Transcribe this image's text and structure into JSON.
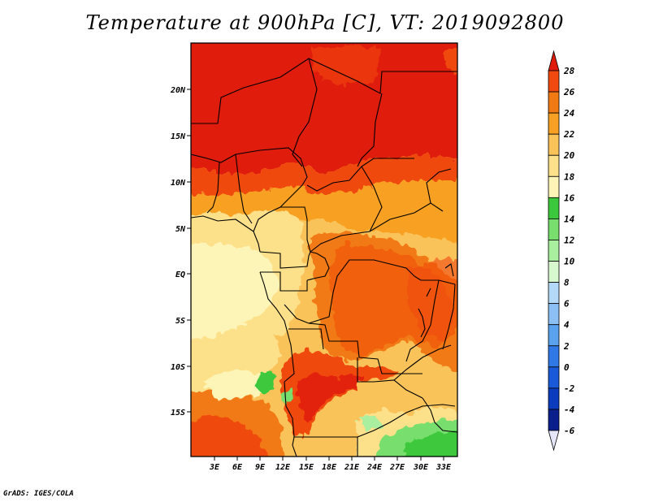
{
  "title": "Temperature at 900hPa [C], VT: 2019092800",
  "credit": "GrADS: IGES/COLA",
  "map": {
    "lat_labels": [
      "20N",
      "15N",
      "10N",
      "5N",
      "EQ",
      "5S",
      "10S",
      "15S"
    ],
    "lon_labels": [
      "3E",
      "6E",
      "9E",
      "12E",
      "15E",
      "18E",
      "21E",
      "24E",
      "27E",
      "30E",
      "33E"
    ]
  },
  "colorbar": {
    "labels": [
      "28",
      "26",
      "24",
      "22",
      "20",
      "18",
      "16",
      "14",
      "12",
      "10",
      "8",
      "6",
      "4",
      "2",
      "0",
      "-2",
      "-4",
      "-6"
    ],
    "colors": [
      "#e01a0a",
      "#f04a10",
      "#f27a12",
      "#f7a024",
      "#fac35a",
      "#fde08a",
      "#fdf5b8",
      "#3cc83c",
      "#78de6e",
      "#aaeea0",
      "#d8f8d0",
      "#b4d8f8",
      "#8cc0f4",
      "#5aa2ee",
      "#3078e6",
      "#1a5ad8",
      "#0c3cbe",
      "#0a1e8c",
      "#0a0a5a"
    ],
    "under_color": "#e6e6fa",
    "over_color": "#e01a0a"
  }
}
